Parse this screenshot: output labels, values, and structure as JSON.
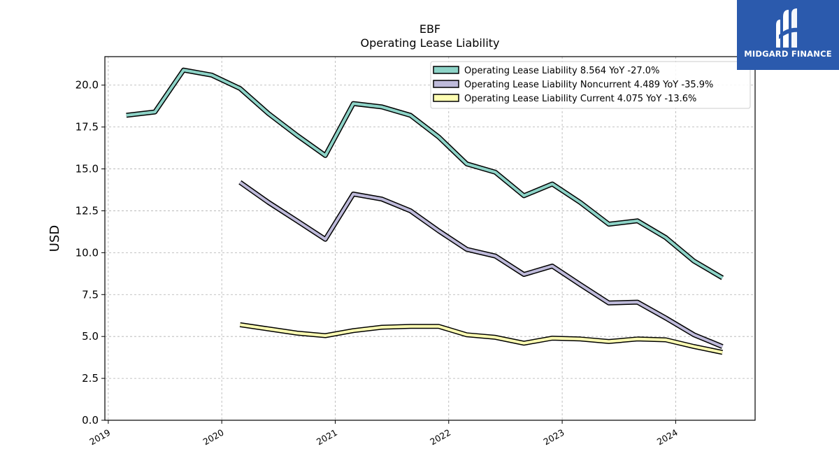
{
  "chart_data": {
    "type": "line",
    "title": "EBF",
    "subtitle": "Operating Lease Liability",
    "ylabel": "USD",
    "xlabel": "",
    "ylim": [
      0,
      21.7
    ],
    "xlim": [
      2018.97,
      2024.7
    ],
    "yticks": [
      "0.0",
      "2.5",
      "5.0",
      "7.5",
      "10.0",
      "12.5",
      "15.0",
      "17.5",
      "20.0"
    ],
    "xticks": [
      "2019",
      "2020",
      "2021",
      "2022",
      "2023",
      "2024"
    ],
    "grid": true,
    "legend_position": "top-right",
    "series": [
      {
        "name": "Operating Lease Liability",
        "legend_label": "Operating Lease Liability  8.564 YoY -27.0%",
        "color": "#8dd3c7",
        "points": [
          [
            "2019-02-28",
            18.2
          ],
          [
            "2019-05-31",
            18.4
          ],
          [
            "2019-08-31",
            20.9
          ],
          [
            "2019-11-30",
            20.6
          ],
          [
            "2020-02-29",
            19.8
          ],
          [
            "2020-05-31",
            18.3
          ],
          [
            "2020-08-31",
            17.0
          ],
          [
            "2020-11-30",
            15.8
          ],
          [
            "2021-02-28",
            18.9
          ],
          [
            "2021-05-31",
            18.7
          ],
          [
            "2021-08-31",
            18.2
          ],
          [
            "2021-11-30",
            16.9
          ],
          [
            "2022-02-28",
            15.3
          ],
          [
            "2022-05-31",
            14.8
          ],
          [
            "2022-08-31",
            13.4
          ],
          [
            "2022-11-30",
            14.1
          ],
          [
            "2023-02-28",
            13.0
          ],
          [
            "2023-05-31",
            11.7
          ],
          [
            "2023-08-31",
            11.9
          ],
          [
            "2023-11-30",
            10.9
          ],
          [
            "2024-02-29",
            9.5
          ],
          [
            "2024-05-31",
            8.5
          ]
        ]
      },
      {
        "name": "Operating Lease Liability Noncurrent",
        "legend_label": "Operating Lease Liability Noncurrent  4.489 YoY -35.9%",
        "color": "#bebada",
        "points": [
          [
            "2020-02-29",
            14.2
          ],
          [
            "2020-05-31",
            13.0
          ],
          [
            "2020-08-31",
            11.9
          ],
          [
            "2020-11-30",
            10.8
          ],
          [
            "2021-02-28",
            13.5
          ],
          [
            "2021-05-31",
            13.2
          ],
          [
            "2021-08-31",
            12.5
          ],
          [
            "2021-11-30",
            11.3
          ],
          [
            "2022-02-28",
            10.2
          ],
          [
            "2022-05-31",
            9.8
          ],
          [
            "2022-08-31",
            8.7
          ],
          [
            "2022-11-30",
            9.2
          ],
          [
            "2023-02-28",
            8.1
          ],
          [
            "2023-05-31",
            7.0
          ],
          [
            "2023-08-31",
            7.05
          ],
          [
            "2023-11-30",
            6.1
          ],
          [
            "2024-02-29",
            5.1
          ],
          [
            "2024-05-31",
            4.4
          ]
        ]
      },
      {
        "name": "Operating Lease Liability Current",
        "legend_label": "Operating Lease Liability Current  4.075 YoY -13.6%",
        "color": "#ffffb3",
        "points": [
          [
            "2020-02-29",
            5.7
          ],
          [
            "2020-05-31",
            5.45
          ],
          [
            "2020-08-31",
            5.2
          ],
          [
            "2020-11-30",
            5.05
          ],
          [
            "2021-02-28",
            5.35
          ],
          [
            "2021-05-31",
            5.55
          ],
          [
            "2021-08-31",
            5.6
          ],
          [
            "2021-11-30",
            5.6
          ],
          [
            "2022-02-28",
            5.1
          ],
          [
            "2022-05-31",
            4.95
          ],
          [
            "2022-08-31",
            4.6
          ],
          [
            "2022-11-30",
            4.9
          ],
          [
            "2023-02-28",
            4.85
          ],
          [
            "2023-05-31",
            4.7
          ],
          [
            "2023-08-31",
            4.85
          ],
          [
            "2023-11-30",
            4.8
          ],
          [
            "2024-02-29",
            4.4
          ],
          [
            "2024-05-31",
            4.05
          ]
        ]
      }
    ]
  },
  "logo": {
    "text": "MIDGARD FINANCE",
    "background": "#2b5aad"
  }
}
